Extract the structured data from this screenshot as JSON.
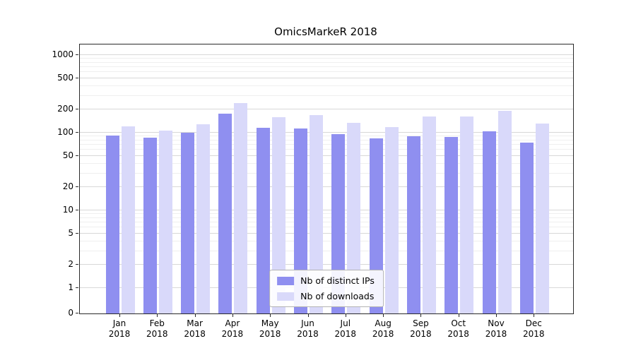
{
  "chart_data": {
    "type": "bar",
    "title": "OmicsMarkeR 2018",
    "categories": [
      {
        "month": "Jan",
        "year": "2018"
      },
      {
        "month": "Feb",
        "year": "2018"
      },
      {
        "month": "Mar",
        "year": "2018"
      },
      {
        "month": "Apr",
        "year": "2018"
      },
      {
        "month": "May",
        "year": "2018"
      },
      {
        "month": "Jun",
        "year": "2018"
      },
      {
        "month": "Jul",
        "year": "2018"
      },
      {
        "month": "Aug",
        "year": "2018"
      },
      {
        "month": "Sep",
        "year": "2018"
      },
      {
        "month": "Oct",
        "year": "2018"
      },
      {
        "month": "Nov",
        "year": "2018"
      },
      {
        "month": "Dec",
        "year": "2018"
      }
    ],
    "series": [
      {
        "name": "Nb of distinct IPs",
        "color": "#8f8ff0",
        "values": [
          92,
          87,
          100,
          175,
          115,
          113,
          95,
          85,
          90,
          88,
          104,
          75
        ]
      },
      {
        "name": "Nb of downloads",
        "color": "#d9d9fa",
        "values": [
          120,
          107,
          128,
          240,
          160,
          168,
          133,
          118,
          162,
          161,
          190,
          130
        ]
      }
    ],
    "y_axis": {
      "scale": "symlog",
      "ticks": [
        0,
        1,
        2,
        5,
        10,
        20,
        50,
        100,
        200,
        500,
        1000
      ],
      "range": [
        0,
        1000
      ]
    },
    "grid": "horizontal",
    "legend_position": "lower center"
  }
}
